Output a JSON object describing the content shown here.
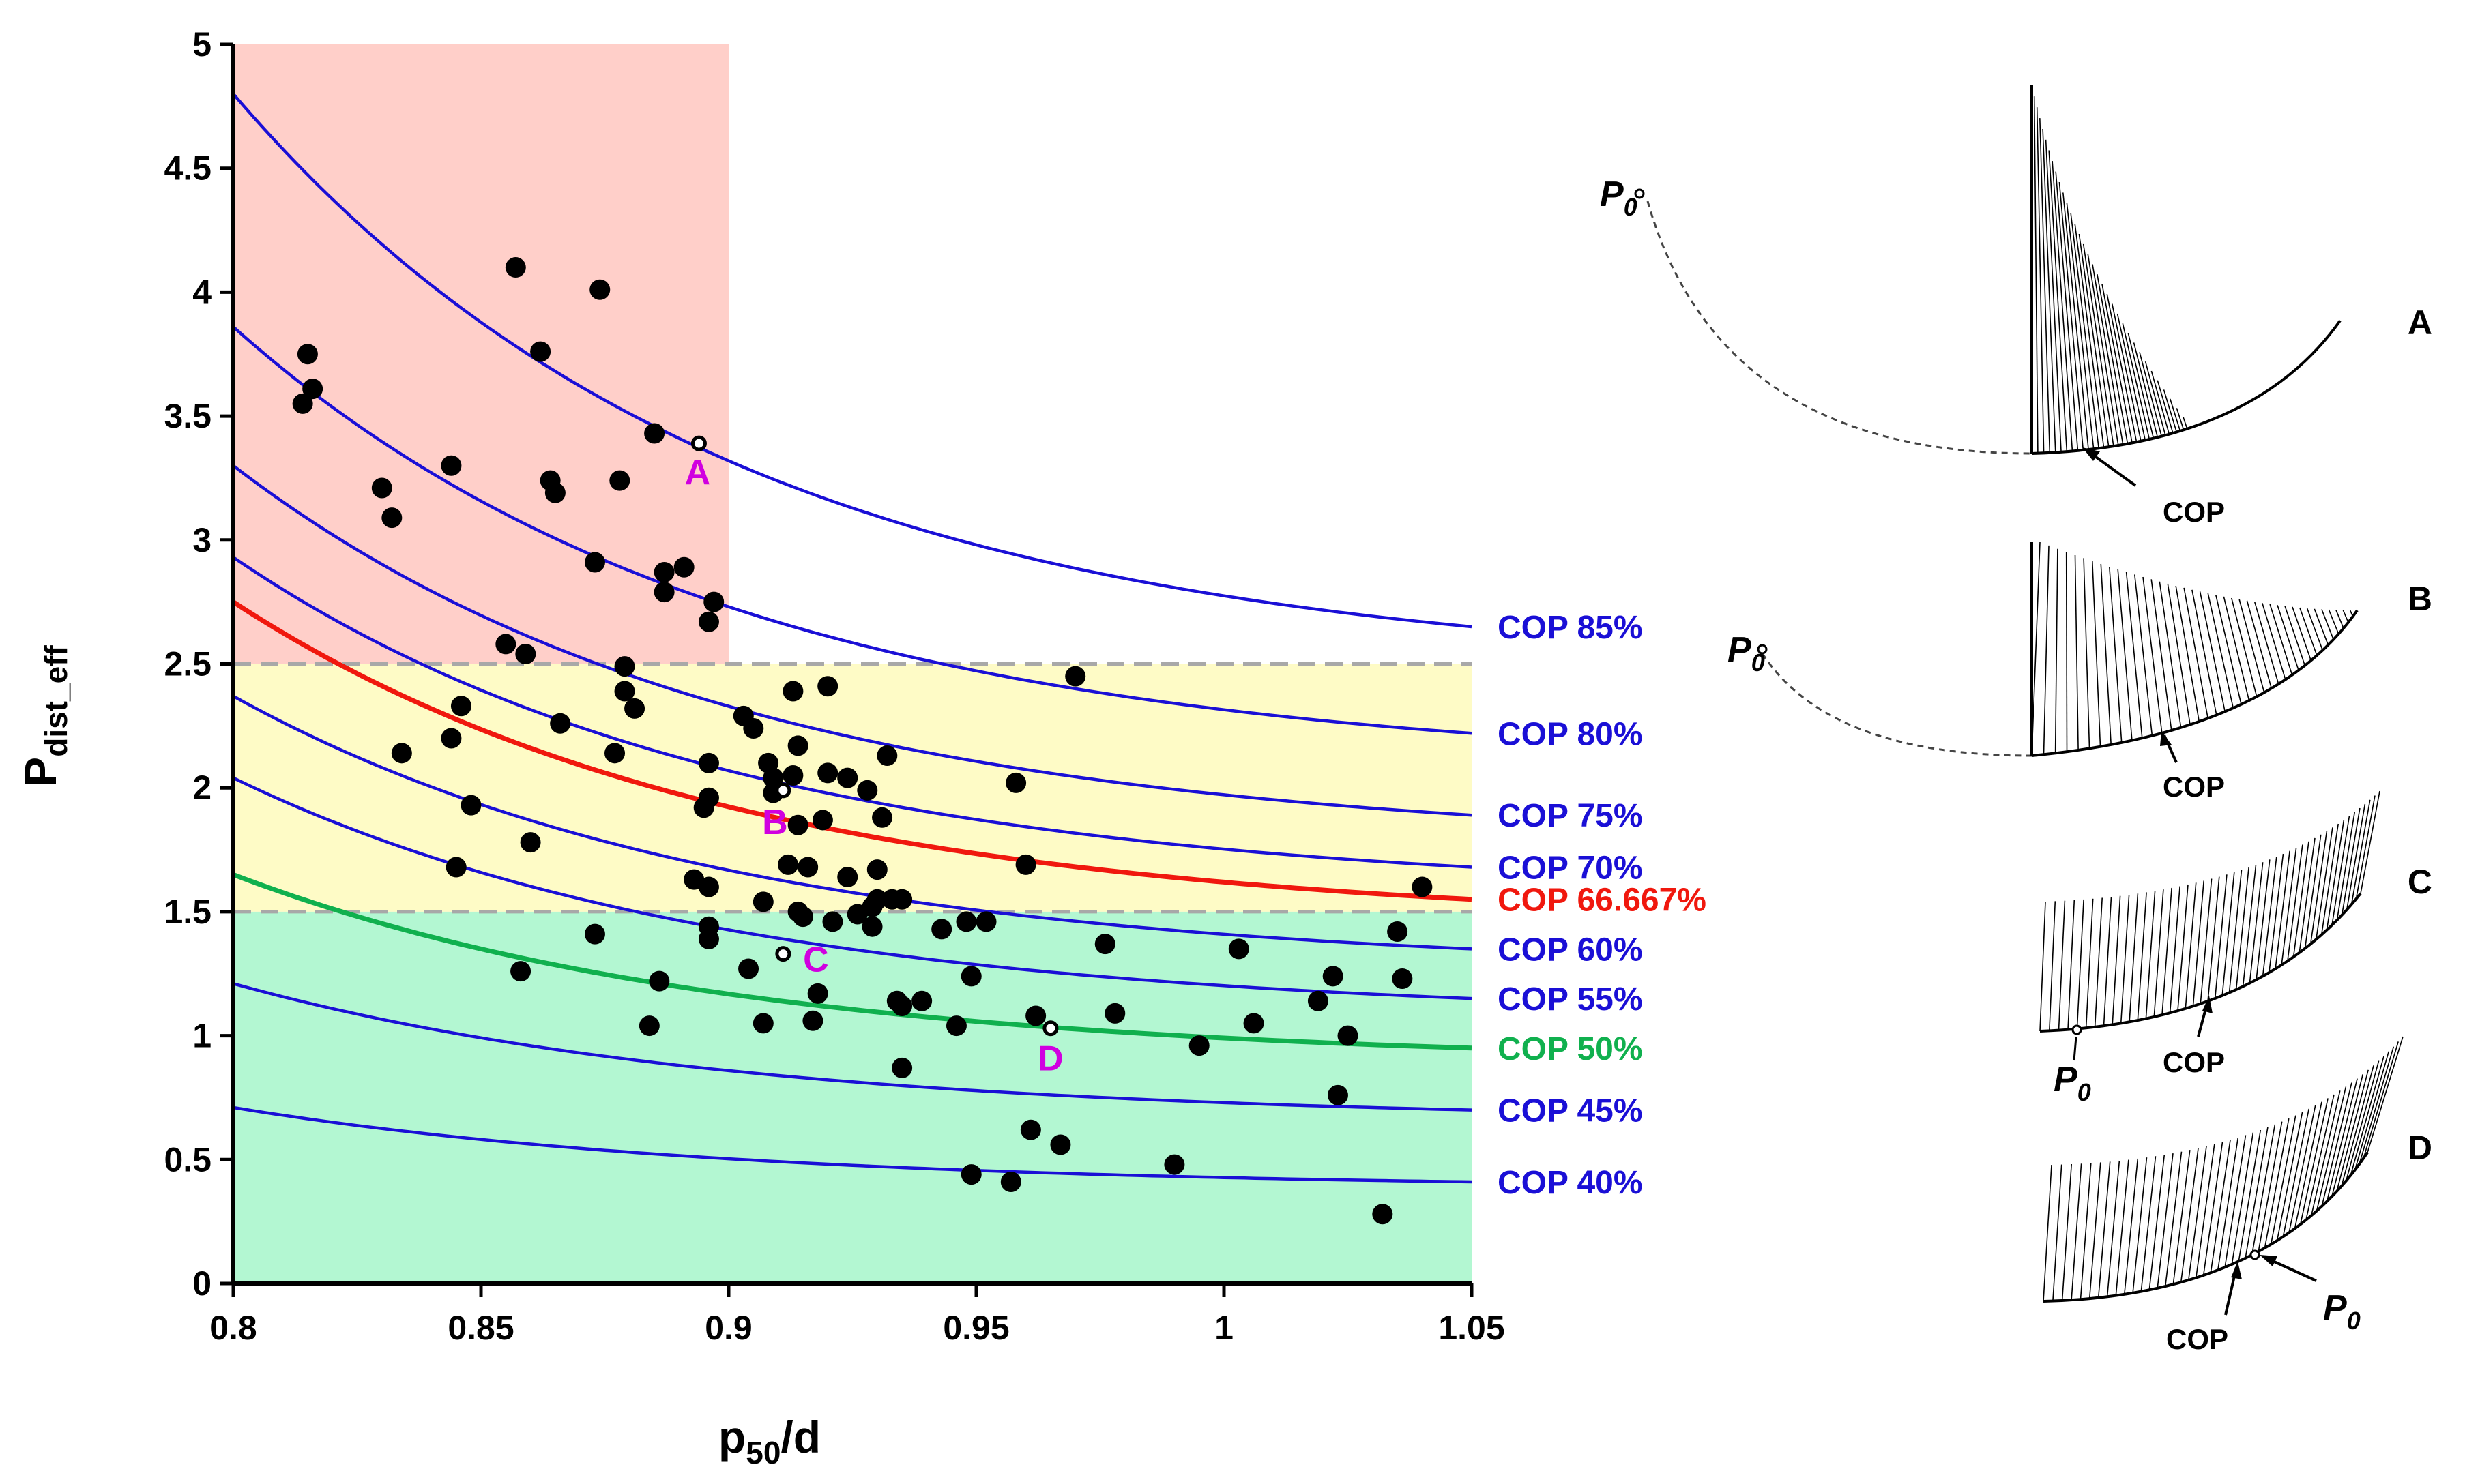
{
  "chart_data": {
    "type": "scatter",
    "xlabel_main": "p",
    "xlabel_sub": "50",
    "xlabel_tail": "/d",
    "ylabel_main": "P",
    "ylabel_sub": "dist_eff",
    "xlim": [
      0.8,
      1.05
    ],
    "ylim": [
      0,
      5
    ],
    "x_ticks": [
      {
        "value": 0.8,
        "label": "0.8"
      },
      {
        "value": 0.85,
        "label": "0.85"
      },
      {
        "value": 0.9,
        "label": "0.9"
      },
      {
        "value": 0.95,
        "label": "0.95"
      },
      {
        "value": 1.0,
        "label": "1"
      },
      {
        "value": 1.05,
        "label": "1.05"
      }
    ],
    "y_ticks": [
      {
        "value": 0,
        "label": "0"
      },
      {
        "value": 0.5,
        "label": "0.5"
      },
      {
        "value": 1,
        "label": "1"
      },
      {
        "value": 1.5,
        "label": "1.5"
      },
      {
        "value": 2,
        "label": "2"
      },
      {
        "value": 2.5,
        "label": "2.5"
      },
      {
        "value": 3,
        "label": "3"
      },
      {
        "value": 3.5,
        "label": "3.5"
      },
      {
        "value": 4,
        "label": "4"
      },
      {
        "value": 4.5,
        "label": "4.5"
      },
      {
        "value": 5,
        "label": "5"
      }
    ],
    "regions": [
      {
        "name": "high",
        "x": [
          0.8,
          0.9
        ],
        "y": [
          2.5,
          5.0
        ],
        "color": "#ffcfc9"
      },
      {
        "name": "mid",
        "x": [
          0.8,
          1.05
        ],
        "y": [
          1.5,
          2.5
        ],
        "color": "#fefbc6"
      },
      {
        "name": "low",
        "x": [
          0.8,
          1.05
        ],
        "y": [
          0,
          1.5
        ],
        "color": "#b3f7d2"
      }
    ],
    "threshold_lines": [
      2.5,
      1.5
    ],
    "threshold_color": "#a8a8a8",
    "curves": [
      {
        "label": "COP 85%",
        "y_start": 4.8,
        "y_end": 2.65,
        "color": "#1a0fd6"
      },
      {
        "label": "COP 80%",
        "y_start": 3.86,
        "y_end": 2.22,
        "color": "#1a0fd6"
      },
      {
        "label": "COP 75%",
        "y_start": 3.3,
        "y_end": 1.89,
        "color": "#1a0fd6"
      },
      {
        "label": "COP 70%",
        "y_start": 2.93,
        "y_end": 1.68,
        "color": "#1a0fd6"
      },
      {
        "label": "COP 66.667%",
        "y_start": 2.75,
        "y_end": 1.55,
        "color": "#f0180e"
      },
      {
        "label": "COP 60%",
        "y_start": 2.37,
        "y_end": 1.35,
        "color": "#1a0fd6"
      },
      {
        "label": "COP 55%",
        "y_start": 2.04,
        "y_end": 1.15,
        "color": "#1a0fd6"
      },
      {
        "label": "COP 50%",
        "y_start": 1.65,
        "y_end": 0.95,
        "color": "#10b04e"
      },
      {
        "label": "COP 45%",
        "y_start": 1.21,
        "y_end": 0.7,
        "color": "#1a0fd6"
      },
      {
        "label": "COP 40%",
        "y_start": 0.71,
        "y_end": 0.41,
        "color": "#1a0fd6"
      }
    ],
    "points": [
      [
        0.815,
        3.75
      ],
      [
        0.816,
        3.61
      ],
      [
        0.814,
        3.55
      ],
      [
        0.83,
        3.21
      ],
      [
        0.832,
        3.09
      ],
      [
        0.844,
        3.3
      ],
      [
        0.857,
        4.1
      ],
      [
        0.874,
        4.01
      ],
      [
        0.862,
        3.76
      ],
      [
        0.864,
        3.24
      ],
      [
        0.865,
        3.19
      ],
      [
        0.878,
        3.24
      ],
      [
        0.885,
        3.43
      ],
      [
        0.873,
        2.91
      ],
      [
        0.887,
        2.87
      ],
      [
        0.891,
        2.89
      ],
      [
        0.887,
        2.79
      ],
      [
        0.897,
        2.75
      ],
      [
        0.896,
        2.67
      ],
      [
        0.855,
        2.58
      ],
      [
        0.859,
        2.54
      ],
      [
        0.879,
        2.49
      ],
      [
        0.879,
        2.39
      ],
      [
        0.881,
        2.32
      ],
      [
        0.846,
        2.33
      ],
      [
        0.866,
        2.26
      ],
      [
        0.844,
        2.2
      ],
      [
        0.877,
        2.14
      ],
      [
        0.834,
        2.14
      ],
      [
        0.848,
        1.93
      ],
      [
        0.86,
        1.78
      ],
      [
        0.845,
        1.68
      ],
      [
        0.903,
        2.29
      ],
      [
        0.905,
        2.24
      ],
      [
        0.913,
        2.39
      ],
      [
        0.92,
        2.41
      ],
      [
        0.914,
        2.17
      ],
      [
        0.896,
        2.1
      ],
      [
        0.908,
        2.1
      ],
      [
        0.909,
        2.04
      ],
      [
        0.913,
        2.05
      ],
      [
        0.92,
        2.06
      ],
      [
        0.924,
        2.04
      ],
      [
        0.896,
        1.96
      ],
      [
        0.895,
        1.92
      ],
      [
        0.909,
        1.98
      ],
      [
        0.919,
        1.87
      ],
      [
        0.914,
        1.85
      ],
      [
        0.928,
        1.99
      ],
      [
        0.931,
        1.88
      ],
      [
        0.932,
        2.13
      ],
      [
        0.97,
        2.45
      ],
      [
        0.958,
        2.02
      ],
      [
        0.96,
        1.69
      ],
      [
        0.893,
        1.63
      ],
      [
        0.896,
        1.6
      ],
      [
        0.907,
        1.54
      ],
      [
        0.912,
        1.69
      ],
      [
        0.916,
        1.68
      ],
      [
        0.924,
        1.64
      ],
      [
        0.93,
        1.67
      ],
      [
        0.93,
        1.55
      ],
      [
        0.933,
        1.55
      ],
      [
        0.929,
        1.52
      ],
      [
        0.921,
        1.46
      ],
      [
        0.926,
        1.49
      ],
      [
        0.915,
        1.48
      ],
      [
        0.914,
        1.5
      ],
      [
        0.929,
        1.44
      ],
      [
        0.935,
        1.55
      ],
      [
        0.943,
        1.43
      ],
      [
        0.948,
        1.46
      ],
      [
        0.952,
        1.46
      ],
      [
        0.873,
        1.41
      ],
      [
        0.896,
        1.44
      ],
      [
        0.896,
        1.39
      ],
      [
        0.858,
        1.26
      ],
      [
        0.904,
        1.27
      ],
      [
        0.918,
        1.17
      ],
      [
        0.886,
        1.22
      ],
      [
        0.884,
        1.04
      ],
      [
        0.907,
        1.05
      ],
      [
        0.917,
        1.06
      ],
      [
        0.934,
        1.14
      ],
      [
        0.935,
        1.12
      ],
      [
        0.939,
        1.14
      ],
      [
        0.949,
        1.24
      ],
      [
        0.946,
        1.04
      ],
      [
        0.962,
        1.08
      ],
      [
        0.976,
        1.37
      ],
      [
        0.978,
        1.09
      ],
      [
        0.935,
        0.87
      ],
      [
        0.961,
        0.62
      ],
      [
        0.967,
        0.56
      ],
      [
        0.949,
        0.44
      ],
      [
        0.957,
        0.41
      ],
      [
        0.995,
        0.96
      ],
      [
        1.003,
        1.35
      ],
      [
        1.006,
        1.05
      ],
      [
        1.019,
        1.14
      ],
      [
        1.022,
        1.24
      ],
      [
        1.025,
        1.0
      ],
      [
        1.023,
        0.76
      ],
      [
        0.99,
        0.48
      ],
      [
        1.035,
        1.42
      ],
      [
        1.036,
        1.23
      ],
      [
        1.04,
        1.6
      ],
      [
        1.032,
        0.28
      ]
    ],
    "labeled_points": [
      {
        "label": "A",
        "x": 0.894,
        "y": 3.39
      },
      {
        "label": "B",
        "x": 0.911,
        "y": 1.99
      },
      {
        "label": "C",
        "x": 0.911,
        "y": 1.33
      },
      {
        "label": "D",
        "x": 0.965,
        "y": 1.03
      }
    ]
  },
  "diagrams": {
    "panel_labels": [
      "A",
      "B",
      "C",
      "D"
    ],
    "p0_main": "P",
    "p0_sub": "0",
    "cop_text": "COP"
  }
}
